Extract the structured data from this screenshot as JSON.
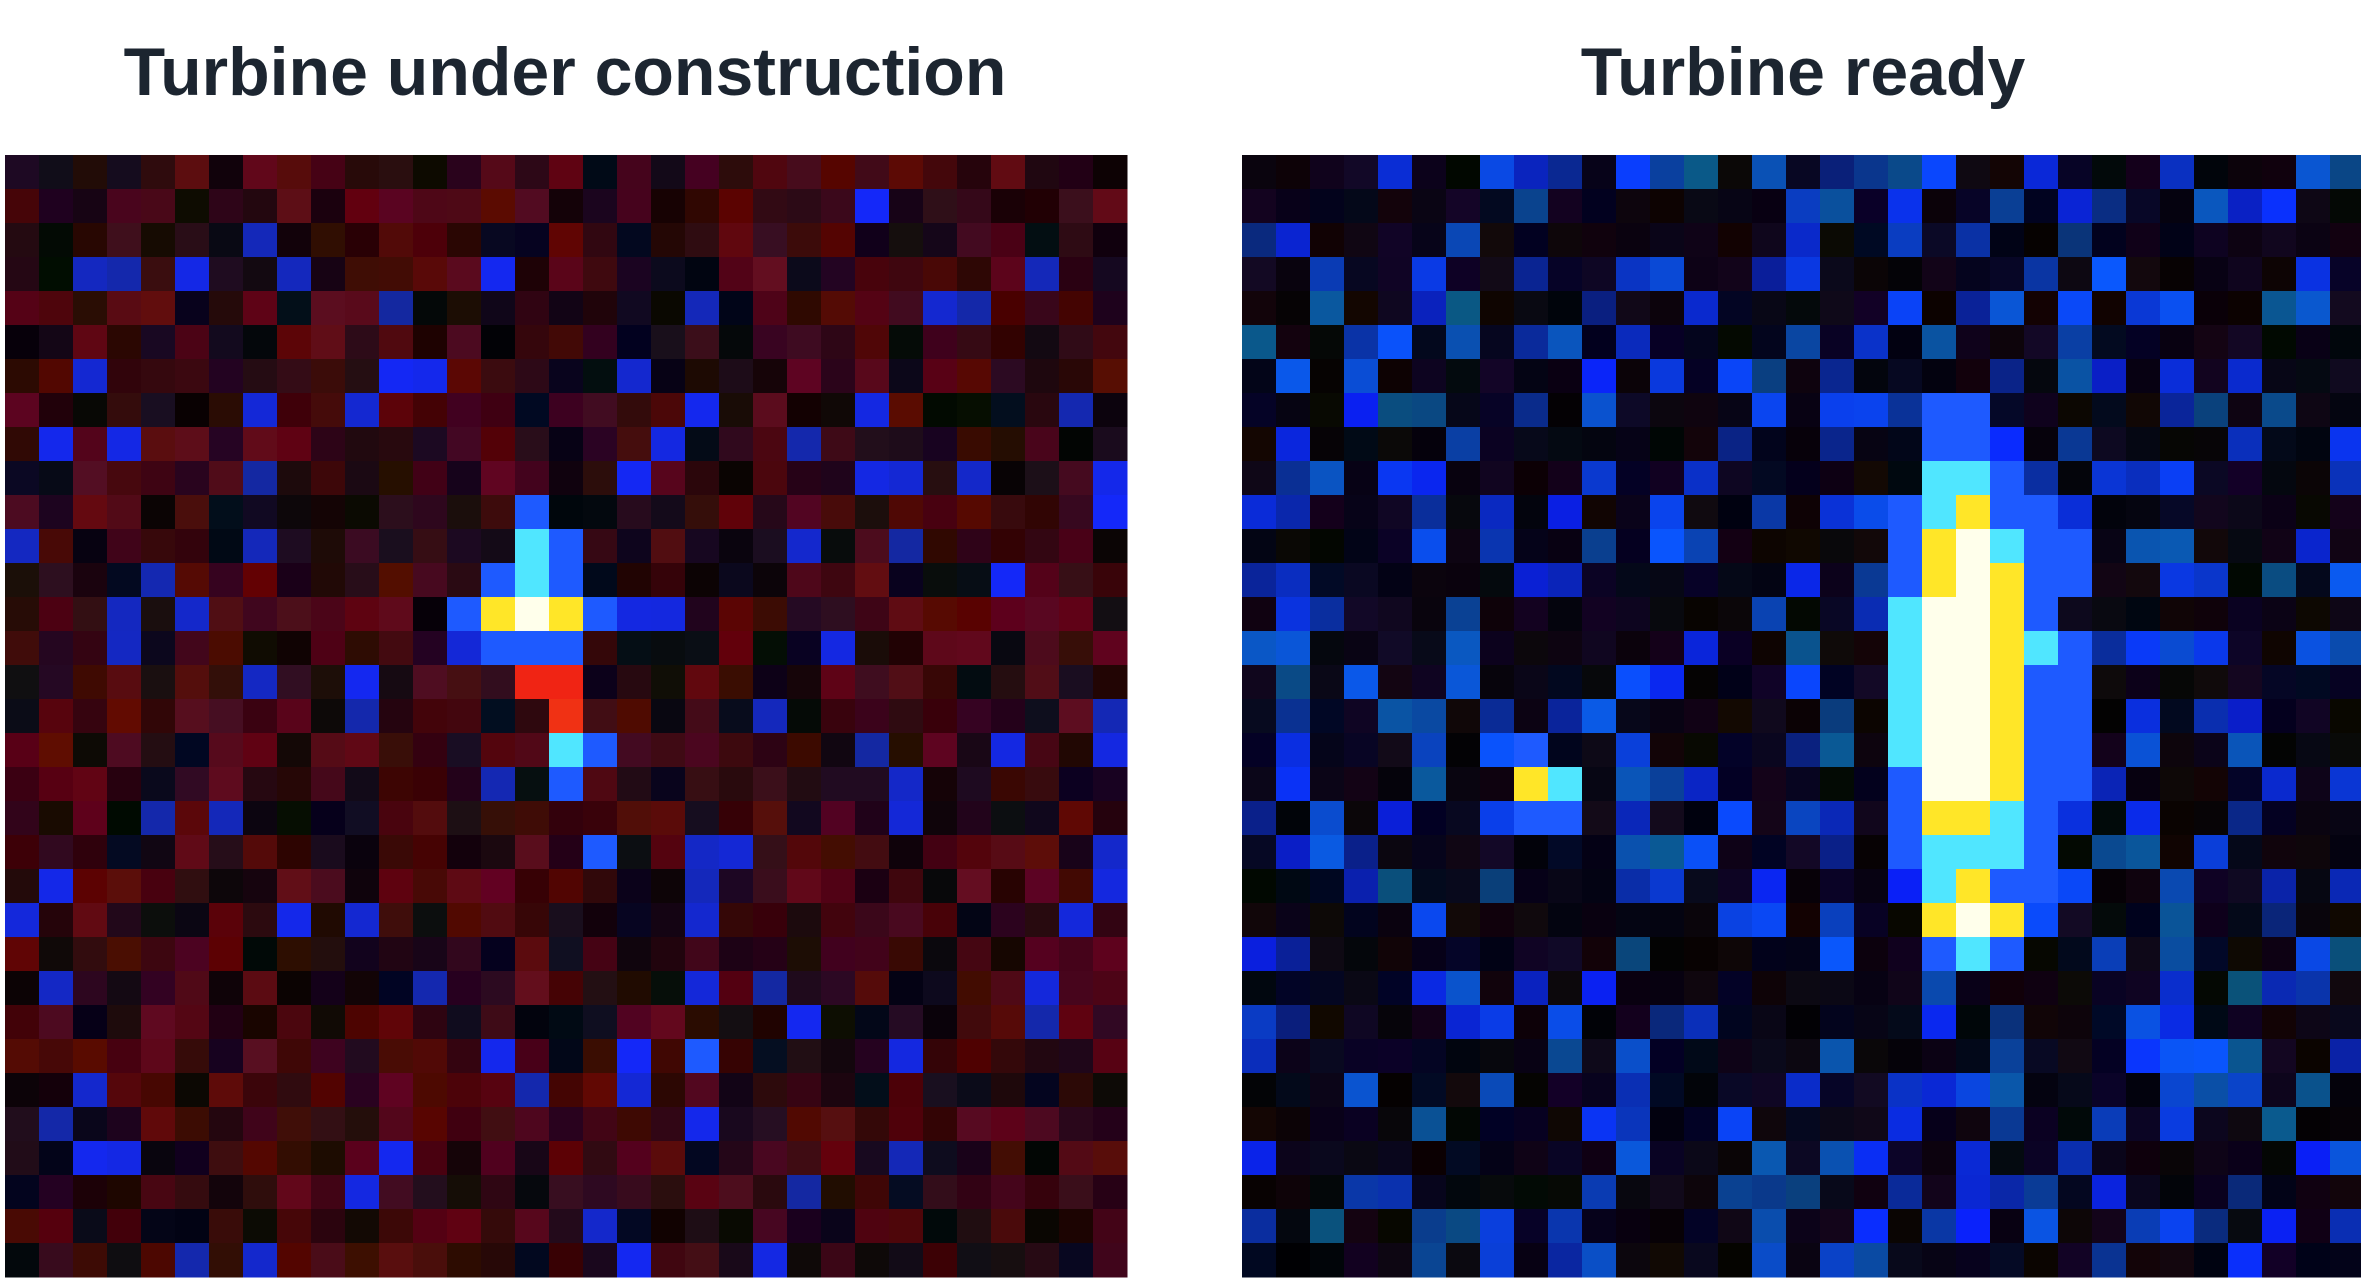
{
  "panels": [
    {
      "title": "Turbine under construction"
    },
    {
      "title": "Turbine ready"
    }
  ]
}
